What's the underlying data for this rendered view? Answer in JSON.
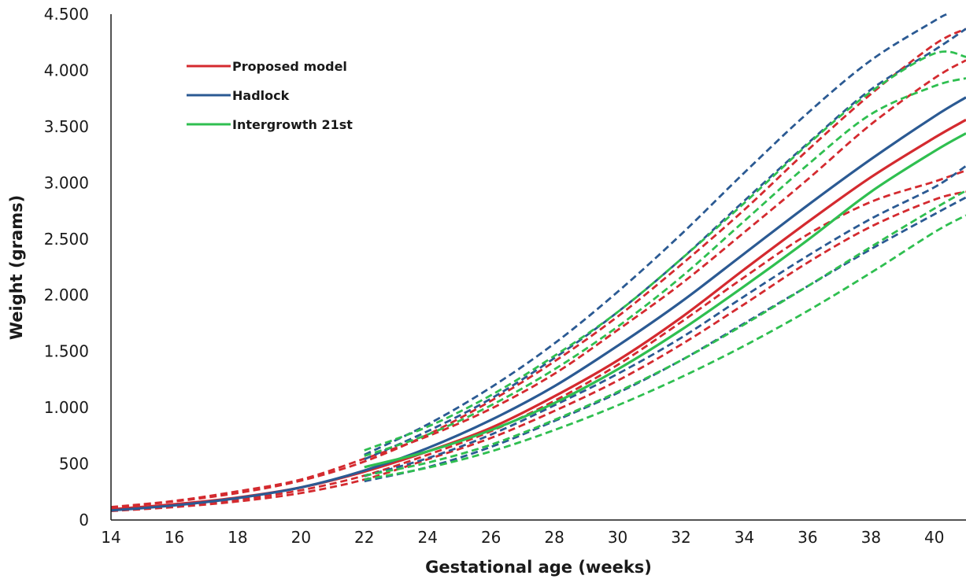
{
  "chart_data": {
    "type": "line",
    "title": "",
    "xlabel": "Gestational age (weeks)",
    "ylabel": "Weight (grams)",
    "xlim": [
      14,
      41
    ],
    "ylim": [
      0,
      4500
    ],
    "grid": false,
    "legend_position": "top-left",
    "x_ticks": [
      14,
      16,
      18,
      20,
      22,
      24,
      26,
      28,
      30,
      32,
      34,
      36,
      38,
      40
    ],
    "x_tick_labels": [
      "14",
      "16",
      "18",
      "20",
      "22",
      "24",
      "26",
      "28",
      "30",
      "32",
      "34",
      "36",
      "38",
      "40"
    ],
    "y_ticks": [
      0,
      500,
      1000,
      1500,
      2000,
      2500,
      3000,
      3500,
      4000,
      4500
    ],
    "y_tick_labels": [
      "0",
      "500",
      "1.000",
      "1.500",
      "2.000",
      "2.500",
      "3.000",
      "3.500",
      "4.000",
      "4.500"
    ],
    "legend": [
      {
        "label": "Proposed model",
        "color": "#d42a2f"
      },
      {
        "label": "Hadlock",
        "color": "#2b5a93"
      },
      {
        "label": "Intergrowth 21st",
        "color": "#2fbf50"
      }
    ],
    "series": [
      {
        "name": "Proposed model",
        "style": "solid",
        "color": "#d42a2f",
        "x": [
          14,
          16,
          18,
          20,
          22,
          24,
          26,
          28,
          30,
          32,
          34,
          36,
          38,
          40,
          41
        ],
        "y": [
          95,
          140,
          200,
          290,
          430,
          610,
          820,
          1100,
          1420,
          1800,
          2230,
          2650,
          3050,
          3400,
          3560
        ]
      },
      {
        "style": "dashed",
        "color": "#d42a2f",
        "x": [
          14,
          16,
          18,
          20,
          22,
          24,
          26,
          28,
          30,
          32,
          34,
          36,
          38,
          40,
          41
        ],
        "y": [
          110,
          165,
          240,
          350,
          520,
          760,
          1060,
          1410,
          1810,
          2270,
          2760,
          3290,
          3790,
          4230,
          4370
        ]
      },
      {
        "style": "dashed",
        "color": "#d42a2f",
        "x": [
          14,
          16,
          18,
          20,
          22,
          24,
          26,
          28,
          30,
          32,
          34,
          36,
          38,
          40,
          41
        ],
        "y": [
          115,
          170,
          255,
          360,
          545,
          745,
          990,
          1300,
          1690,
          2100,
          2560,
          3030,
          3520,
          3930,
          4090
        ]
      },
      {
        "style": "dashed",
        "color": "#d42a2f",
        "x": [
          14,
          16,
          18,
          20,
          22,
          24,
          26,
          28,
          30,
          32,
          34,
          36,
          38,
          40,
          41
        ],
        "y": [
          85,
          125,
          180,
          265,
          395,
          580,
          790,
          1060,
          1380,
          1760,
          2160,
          2540,
          2830,
          3010,
          3110
        ]
      },
      {
        "style": "dashed",
        "color": "#d42a2f",
        "x": [
          14,
          16,
          18,
          20,
          22,
          24,
          26,
          28,
          30,
          32,
          34,
          36,
          38,
          40,
          41
        ],
        "y": [
          80,
          115,
          165,
          240,
          360,
          540,
          730,
          970,
          1240,
          1560,
          1920,
          2290,
          2610,
          2850,
          2920
        ]
      },
      {
        "name": "Hadlock",
        "style": "solid",
        "color": "#2b5a93",
        "x": [
          14,
          16,
          18,
          20,
          22,
          24,
          26,
          28,
          30,
          32,
          34,
          36,
          38,
          40,
          41
        ],
        "y": [
          85,
          130,
          195,
          290,
          440,
          640,
          890,
          1190,
          1550,
          1940,
          2370,
          2800,
          3210,
          3590,
          3760
        ]
      },
      {
        "style": "dashed",
        "color": "#2b5a93",
        "x": [
          22,
          24,
          26,
          28,
          30,
          32,
          34,
          36,
          38,
          40,
          40.4
        ],
        "y": [
          580,
          850,
          1180,
          1570,
          2030,
          2540,
          3090,
          3620,
          4090,
          4440,
          4500
        ]
      },
      {
        "style": "dashed",
        "color": "#2b5a93",
        "x": [
          22,
          24,
          26,
          28,
          30,
          32,
          34,
          36,
          38,
          40,
          41
        ],
        "y": [
          540,
          790,
          1080,
          1440,
          1850,
          2320,
          2840,
          3350,
          3830,
          4180,
          4370
        ]
      },
      {
        "style": "dashed",
        "color": "#2b5a93",
        "x": [
          22,
          24,
          26,
          28,
          30,
          32,
          34,
          36,
          38,
          40,
          41
        ],
        "y": [
          390,
          550,
          760,
          1020,
          1300,
          1620,
          1990,
          2350,
          2680,
          2960,
          3150
        ]
      },
      {
        "style": "dashed",
        "color": "#2b5a93",
        "x": [
          22,
          24,
          26,
          28,
          30,
          32,
          34,
          36,
          38,
          40,
          41
        ],
        "y": [
          345,
          470,
          650,
          880,
          1130,
          1420,
          1750,
          2080,
          2410,
          2720,
          2870
        ]
      },
      {
        "name": "Intergrowth 21st",
        "style": "solid",
        "color": "#2fbf50",
        "x": [
          22,
          24,
          26,
          28,
          30,
          32,
          34,
          36,
          38,
          40,
          41
        ],
        "y": [
          470,
          610,
          800,
          1040,
          1340,
          1690,
          2080,
          2490,
          2920,
          3280,
          3440
        ]
      },
      {
        "style": "dashed",
        "color": "#2fbf50",
        "x": [
          22,
          24,
          26,
          28,
          30,
          32,
          34,
          36,
          38,
          40,
          41
        ],
        "y": [
          620,
          830,
          1110,
          1460,
          1850,
          2320,
          2820,
          3340,
          3810,
          4150,
          4120
        ]
      },
      {
        "style": "dashed",
        "color": "#2fbf50",
        "x": [
          22,
          24,
          26,
          28,
          30,
          32,
          34,
          36,
          38,
          40,
          41
        ],
        "y": [
          570,
          760,
          1020,
          1340,
          1720,
          2160,
          2660,
          3160,
          3610,
          3860,
          3930
        ]
      },
      {
        "style": "dashed",
        "color": "#2fbf50",
        "x": [
          22,
          24,
          26,
          28,
          30,
          32,
          34,
          36,
          38,
          40,
          41
        ],
        "y": [
          395,
          510,
          670,
          890,
          1140,
          1420,
          1740,
          2080,
          2430,
          2770,
          2930
        ]
      },
      {
        "style": "dashed",
        "color": "#2fbf50",
        "x": [
          22,
          24,
          26,
          28,
          30,
          32,
          34,
          36,
          38,
          40,
          41
        ],
        "y": [
          360,
          465,
          610,
          800,
          1020,
          1270,
          1550,
          1860,
          2200,
          2560,
          2710
        ]
      }
    ]
  }
}
